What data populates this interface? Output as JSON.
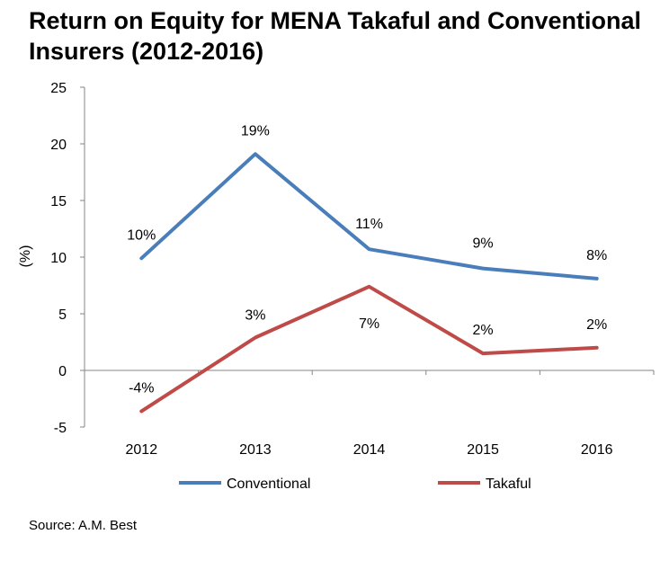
{
  "title": "Return on Equity for MENA Takaful and Conventional Insurers (2012-2016)",
  "source": "Source: A.M. Best",
  "chart_data": {
    "type": "line",
    "title": "Return on Equity for MENA Takaful and Conventional Insurers (2012-2016)",
    "xlabel": "",
    "ylabel": "(%)",
    "categories": [
      "2012",
      "2013",
      "2014",
      "2015",
      "2016"
    ],
    "y_ticks": [
      25,
      20,
      15,
      10,
      5,
      0,
      -5
    ],
    "ylim": [
      -5,
      25
    ],
    "grid": false,
    "legend_position": "bottom",
    "series": [
      {
        "name": "Conventional",
        "color": "#4a7ebb",
        "values": [
          9.9,
          19.1,
          10.7,
          9.0,
          8.1
        ],
        "labels": [
          "10%",
          "19%",
          "11%",
          "9%",
          "8%"
        ]
      },
      {
        "name": "Takaful",
        "color": "#be4b48",
        "values": [
          -3.6,
          2.9,
          7.4,
          1.5,
          2.0
        ],
        "labels": [
          "-4%",
          "3%",
          "7%",
          "2%",
          "2%"
        ]
      }
    ]
  }
}
